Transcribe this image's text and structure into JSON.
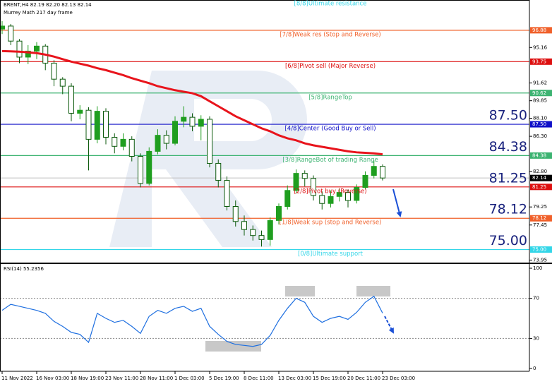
{
  "chart_data": {
    "type": "candlestick",
    "title": "BRENT,H4 82.19 82.20 82.13 82.14",
    "subtitle": "Murrey Math 217 day frame",
    "open": [
      97.0,
      97.3,
      95.8,
      94.2,
      94.8,
      95.3,
      93.6,
      92.0,
      91.3,
      88.6,
      88.9,
      86.0,
      88.8,
      86.2,
      85.3,
      86.0,
      84.3,
      81.6,
      84.8,
      86.4,
      85.6,
      87.8,
      88.2,
      87.3,
      88.0,
      83.6,
      81.9,
      79.3,
      77.8,
      77.0,
      76.4,
      76.0,
      77.9,
      79.3,
      80.9,
      82.6,
      82.1,
      80.4,
      79.6,
      80.3,
      80.7,
      79.9,
      81.2,
      82.4,
      83.3
    ],
    "high": [
      97.8,
      97.5,
      96.0,
      95.4,
      95.7,
      95.5,
      93.9,
      92.2,
      91.6,
      89.4,
      89.2,
      89.3,
      89.1,
      86.6,
      86.6,
      86.3,
      84.6,
      85.2,
      87.0,
      86.9,
      88.3,
      89.3,
      88.6,
      88.4,
      88.3,
      84.0,
      82.3,
      79.9,
      78.4,
      77.4,
      76.9,
      78.2,
      79.6,
      81.4,
      83.0,
      82.9,
      82.4,
      80.8,
      80.9,
      81.1,
      81.0,
      81.5,
      82.8,
      83.9,
      83.5
    ],
    "low": [
      96.5,
      95.4,
      93.6,
      93.5,
      94.0,
      92.9,
      91.3,
      90.5,
      87.8,
      88.0,
      82.9,
      85.6,
      85.5,
      84.6,
      84.9,
      83.8,
      81.2,
      81.4,
      84.5,
      85.0,
      85.4,
      87.2,
      86.8,
      85.9,
      83.2,
      81.2,
      78.9,
      77.3,
      76.4,
      75.9,
      75.3,
      75.4,
      77.5,
      79.0,
      80.6,
      81.3,
      79.9,
      79.0,
      79.2,
      79.8,
      79.2,
      79.6,
      81.0,
      82.1,
      81.9
    ],
    "close": [
      97.3,
      95.8,
      94.2,
      94.8,
      95.3,
      93.6,
      92.0,
      91.3,
      88.6,
      88.9,
      86.0,
      88.8,
      86.2,
      85.3,
      86.0,
      84.3,
      81.6,
      84.8,
      86.4,
      85.6,
      87.8,
      88.2,
      87.3,
      88.0,
      83.6,
      81.9,
      79.3,
      77.8,
      77.0,
      76.4,
      76.0,
      77.9,
      79.3,
      80.9,
      82.6,
      82.1,
      80.4,
      79.6,
      80.3,
      80.7,
      79.9,
      81.2,
      82.4,
      83.3,
      82.14
    ],
    "up_color": "#1f9e1f",
    "down_color": "#0c5a0c",
    "last_price": 82.14,
    "moving_average": {
      "color": "#e8141c",
      "values": [
        94.8,
        94.78,
        94.74,
        94.68,
        94.6,
        94.45,
        94.25,
        94.0,
        93.75,
        93.55,
        93.35,
        93.1,
        92.9,
        92.65,
        92.4,
        92.1,
        91.85,
        91.6,
        91.3,
        91.1,
        90.9,
        90.75,
        90.6,
        90.3,
        89.8,
        89.3,
        88.8,
        88.3,
        87.9,
        87.5,
        87.1,
        86.8,
        86.4,
        86.1,
        85.9,
        85.6,
        85.4,
        85.25,
        85.1,
        84.95,
        84.8,
        84.7,
        84.65,
        84.6,
        84.5
      ]
    },
    "levels": [
      {
        "label": "[8/8]Ultimate resistance",
        "value": 100,
        "color": "#33d6e8"
      },
      {
        "label": "[7/8]Weak res (Stop and Reverse)",
        "value": 96.88,
        "color": "#f0602a"
      },
      {
        "label": "[6/8]Pivot sell (Major Reverse)",
        "value": 93.75,
        "color": "#dd1010"
      },
      {
        "label": "[5/8]RangeTop",
        "value": 90.62,
        "color": "#3cb371"
      },
      {
        "label": "[4/8]Center (Good Buy or Sell)",
        "value": 87.5,
        "value_label": "87.50",
        "color": "#1010c8",
        "emphasis": true
      },
      {
        "label": "[3/8]RangeBot of trading Range",
        "value": 84.38,
        "color": "#3cb371",
        "emphasis": true
      },
      {
        "label": "[2/8]Pivot buy (Reverse)",
        "value": 81.25,
        "color": "#dd1010",
        "emphasis": true
      },
      {
        "label": "[1/8]Weak sup (stop and Reverse)",
        "value": 78.12,
        "color": "#f0602a",
        "emphasis": true
      },
      {
        "label": "[0/8]Ultimate support",
        "value": 75,
        "value_label": "75.00",
        "color": "#33d6e8",
        "emphasis": true
      }
    ],
    "ylim": [
      73.7,
      99.9
    ],
    "yticks": [
      95.16,
      91.62,
      89.85,
      {
        "value": 88.1,
        "label": "88.10"
      },
      {
        "value": 86.3,
        "label": "86.30"
      },
      {
        "value": 82.8,
        "label": "82.80"
      },
      79.25,
      77.45,
      73.95
    ],
    "xticks": [
      {
        "value": 0,
        "label": "11 Nov 2022"
      },
      {
        "value": 4,
        "label": "16 Nov 03:00"
      },
      {
        "value": 8,
        "label": "18 Nov 19:00"
      },
      {
        "value": 12,
        "label": "23 Nov 11:00"
      },
      {
        "value": 16,
        "label": "28 Nov 11:00"
      },
      {
        "value": 20,
        "label": "1 Dec 03:00"
      },
      {
        "value": 24,
        "label": "5 Dec 19:00"
      },
      {
        "value": 28,
        "label": "8 Dec 11:00"
      },
      {
        "value": 32,
        "label": "13 Dec 03:00"
      },
      {
        "value": 36,
        "label": "15 Dec 19:00"
      },
      {
        "value": 40,
        "label": "20 Dec 11:00"
      },
      {
        "value": 44,
        "label": "23 Dec 03:00"
      }
    ],
    "rsi": {
      "title": "RSI(14) 55.2356",
      "color": "#1e6fe0",
      "values": [
        58,
        64,
        62,
        60,
        58,
        55,
        47,
        42,
        36,
        34,
        26,
        55,
        50,
        46,
        48,
        42,
        35,
        52,
        58,
        55,
        60,
        62,
        57,
        60,
        42,
        34,
        27,
        24,
        23,
        22,
        24,
        33,
        48,
        60,
        70,
        66,
        52,
        46,
        50,
        52,
        49,
        56,
        66,
        72,
        55.2356
      ],
      "ylim": [
        0,
        100
      ],
      "yticks": [
        100,
        70,
        30,
        0
      ]
    }
  }
}
